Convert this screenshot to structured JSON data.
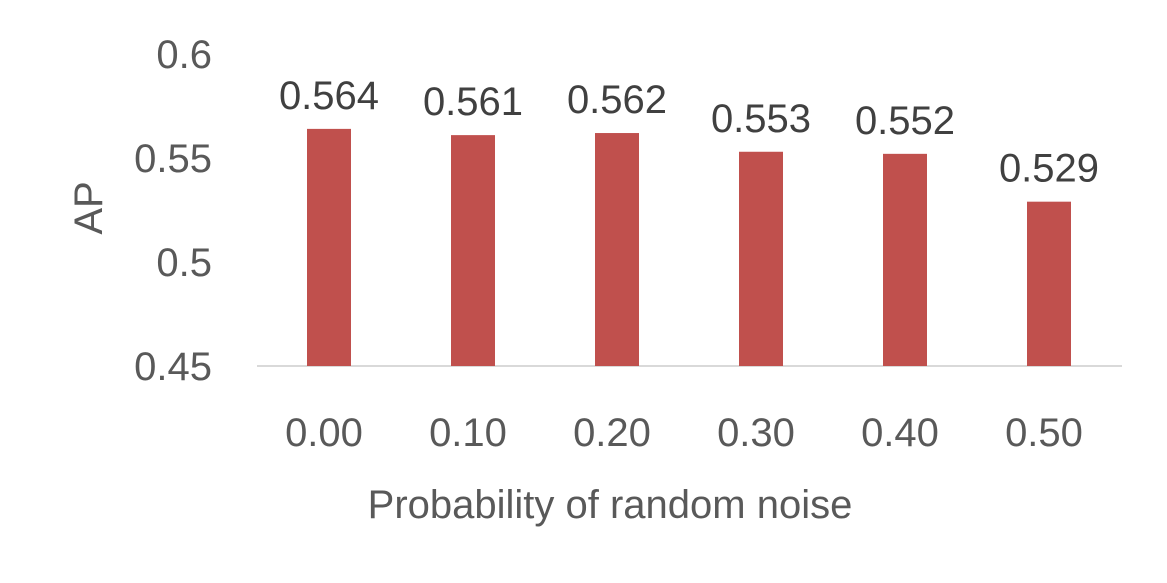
{
  "chart_data": {
    "type": "bar",
    "title": "",
    "xlabel": "Probability of random noise",
    "ylabel": "AP",
    "categories": [
      "0.00",
      "0.10",
      "0.20",
      "0.30",
      "0.40",
      "0.50"
    ],
    "values": [
      0.564,
      0.561,
      0.562,
      0.553,
      0.552,
      0.529
    ],
    "data_labels": [
      "0.564",
      "0.561",
      "0.562",
      "0.553",
      "0.552",
      "0.529"
    ],
    "ylim": [
      0.45,
      0.6
    ],
    "yticks": [
      0.45,
      0.5,
      0.55,
      0.6
    ],
    "ytick_labels": [
      "0.45",
      "0.5",
      "0.55",
      "0.6"
    ],
    "grid": false,
    "legend": "none",
    "colors": {
      "bar": "#c0504d",
      "axis_text": "#595959",
      "label_text": "#404040",
      "axis_line": "#d9d9d9"
    }
  }
}
